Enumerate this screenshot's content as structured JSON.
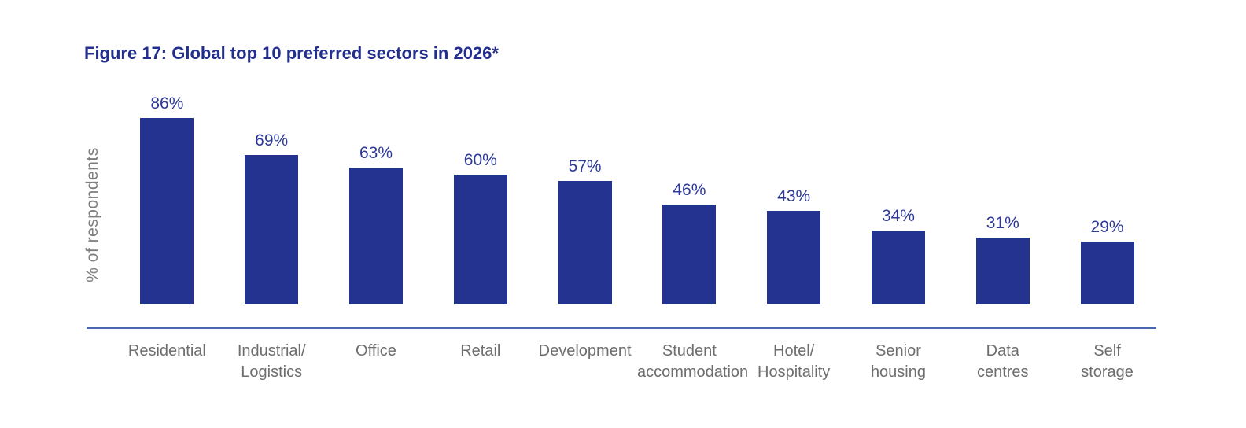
{
  "title": "Figure 17: Global top 10 preferred sectors in 2026*",
  "colors": {
    "bar": "#23338F",
    "title": "#232E8D",
    "value_label": "#2D3A97",
    "axis_line": "#4A66AE",
    "category_label": "#6E6E6E",
    "y_axis_label": "#7D7D7D",
    "background": "#FFFFFF"
  },
  "chart_data": {
    "type": "bar",
    "title": "Figure 17: Global top 10 preferred sectors in 2026*",
    "ylabel": "% of respondents",
    "xlabel": "",
    "ylim": [
      0,
      100
    ],
    "grid": false,
    "legend": "none",
    "bar_color": "#23338F",
    "categories": [
      "Residential",
      "Industrial/Logistics",
      "Office",
      "Retail",
      "Development",
      "Student accommodation",
      "Hotel/Hospitality",
      "Senior housing",
      "Data centres",
      "Self storage"
    ],
    "categories_display": [
      "Residential",
      "Industrial/\nLogistics",
      "Office",
      "Retail",
      "Development",
      "Student\naccommodation",
      "Hotel/\nHospitality",
      "Senior\nhousing",
      "Data\ncentres",
      "Self\nstorage"
    ],
    "values": [
      86,
      69,
      63,
      60,
      57,
      46,
      43,
      34,
      31,
      29
    ],
    "value_labels": [
      "86%",
      "69%",
      "63%",
      "60%",
      "57%",
      "46%",
      "43%",
      "34%",
      "31%",
      "29%"
    ]
  }
}
